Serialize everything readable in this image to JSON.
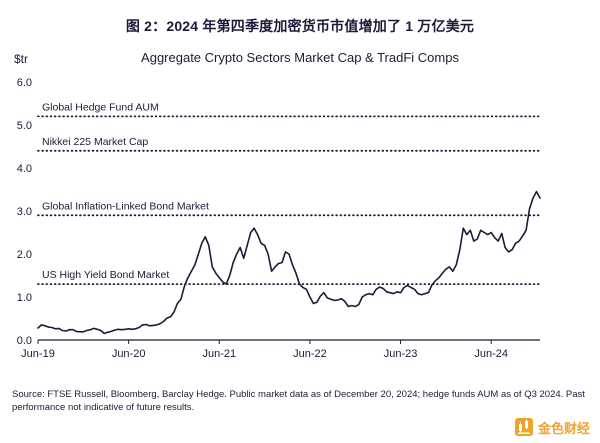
{
  "header": {
    "title": "图 2：2024 年第四季度加密货币市值增加了 1 万亿美元"
  },
  "chart": {
    "unit": "$tr",
    "title": "Aggregate Crypto Sectors Market Cap & TradFi Comps"
  },
  "chart_data": {
    "type": "line",
    "title": "Aggregate Crypto Sectors Market Cap & TradFi Comps",
    "ylabel": "$tr",
    "ylim": [
      0,
      6
    ],
    "yticks": [
      0,
      1,
      2,
      3,
      4,
      5,
      6
    ],
    "grid": false,
    "line_color": "#1b1b38",
    "xticks": [
      {
        "index": 0,
        "label": "Jun-19"
      },
      {
        "index": 26,
        "label": "Jun-20"
      },
      {
        "index": 52,
        "label": "Jun-21"
      },
      {
        "index": 78,
        "label": "Jun-22"
      },
      {
        "index": 104,
        "label": "Jun-23"
      },
      {
        "index": 130,
        "label": "Jun-24"
      }
    ],
    "reference_lines": [
      {
        "label": "Global Hedge Fund AUM",
        "value": 5.2
      },
      {
        "label": "Nikkei 225 Market Cap",
        "value": 4.4
      },
      {
        "label": "Global Inflation-Linked Bond Market",
        "value": 2.9
      },
      {
        "label": "US High Yield Bond Market",
        "value": 1.3
      }
    ],
    "series": [
      {
        "name": "Aggregate Crypto Sectors Market Cap",
        "x_start": "Jun-19",
        "x_end": "Dec-24",
        "values": [
          0.28,
          0.35,
          0.33,
          0.3,
          0.29,
          0.26,
          0.27,
          0.22,
          0.21,
          0.24,
          0.24,
          0.2,
          0.19,
          0.19,
          0.22,
          0.24,
          0.27,
          0.25,
          0.22,
          0.15,
          0.18,
          0.2,
          0.23,
          0.25,
          0.24,
          0.25,
          0.26,
          0.25,
          0.26,
          0.29,
          0.35,
          0.36,
          0.33,
          0.34,
          0.35,
          0.38,
          0.43,
          0.51,
          0.54,
          0.65,
          0.85,
          0.95,
          1.25,
          1.45,
          1.6,
          1.75,
          2.0,
          2.25,
          2.4,
          2.2,
          1.7,
          1.55,
          1.45,
          1.35,
          1.3,
          1.5,
          1.8,
          2.0,
          2.15,
          1.9,
          2.2,
          2.5,
          2.6,
          2.45,
          2.25,
          2.2,
          2.0,
          1.6,
          1.7,
          1.78,
          1.8,
          2.05,
          2.0,
          1.75,
          1.55,
          1.3,
          1.22,
          1.18,
          1.0,
          0.85,
          0.88,
          1.02,
          1.1,
          0.98,
          0.95,
          0.92,
          0.93,
          0.96,
          0.9,
          0.78,
          0.8,
          0.78,
          0.82,
          1.0,
          1.05,
          1.08,
          1.05,
          1.18,
          1.23,
          1.2,
          1.12,
          1.1,
          1.08,
          1.12,
          1.1,
          1.22,
          1.27,
          1.22,
          1.18,
          1.08,
          1.05,
          1.08,
          1.1,
          1.28,
          1.38,
          1.45,
          1.55,
          1.65,
          1.7,
          1.6,
          1.75,
          2.1,
          2.6,
          2.45,
          2.55,
          2.3,
          2.35,
          2.55,
          2.5,
          2.45,
          2.5,
          2.38,
          2.3,
          2.48,
          2.15,
          2.05,
          2.1,
          2.25,
          2.3,
          2.42,
          2.55,
          3.05,
          3.3,
          3.45,
          3.3
        ]
      }
    ]
  },
  "footer": {
    "source": "Source: FTSE Russell, Bloomberg, Barclay Hedge. Public market data as of December 20, 2024; hedge funds AUM as of Q3 2024. Past performance not indicative of future results.",
    "brand": "金色财经",
    "brand_color": "#f0a32b"
  }
}
